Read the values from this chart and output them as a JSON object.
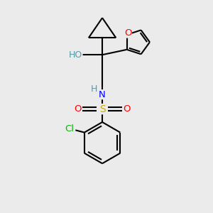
{
  "background_color": "#ebebeb",
  "bond_color": "#000000",
  "bond_width": 1.5,
  "atom_colors": {
    "O": "#ff0000",
    "N": "#0000ff",
    "S": "#ccaa00",
    "Cl": "#00bb00",
    "H_label": "#5599aa",
    "C": "#000000"
  },
  "figsize": [
    3.0,
    3.0
  ],
  "dpi": 100,
  "bg": "#ebebeb"
}
